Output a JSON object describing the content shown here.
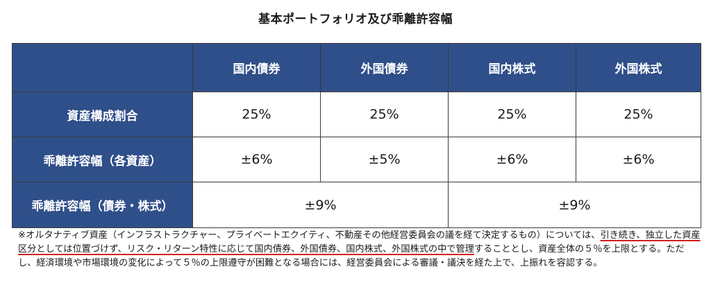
{
  "title": "基本ポートフォリオ及び乖離許容幅",
  "table": {
    "columns": [
      "国内債券",
      "外国債券",
      "国内株式",
      "外国株式"
    ],
    "rows": [
      {
        "label": "資産構成割合",
        "values": [
          "25%",
          "25%",
          "25%",
          "25%"
        ]
      },
      {
        "label": "乖離許容幅（各資産）",
        "values": [
          "±6%",
          "±5%",
          "±6%",
          "±6%"
        ]
      },
      {
        "label": "乖離許容幅（債券・株式）",
        "values": [
          "±9%",
          "±9%"
        ]
      }
    ]
  },
  "note": {
    "part1": "※オルタナティブ資産（インフラストラクチャー、プライベートエクイティ、不動産その他経営委員会の議を経て決定するもの）については、",
    "underlined": "引き続き、独立した資産区分としては位置づけず、リスク・リターン特性に応じて国内債券、外国債券、国内株式、外国株式の中で管理",
    "part2": "することとし、資産全体の５％を上限とする。ただし、経済環境や市場環境の変化によって５％の上限遵守が困難となる場合には、経営委員会による審議・議決を経た上で、上振れを容認する。"
  },
  "colors": {
    "header_bg": "#2f4f8a",
    "underline": "#d42020"
  }
}
